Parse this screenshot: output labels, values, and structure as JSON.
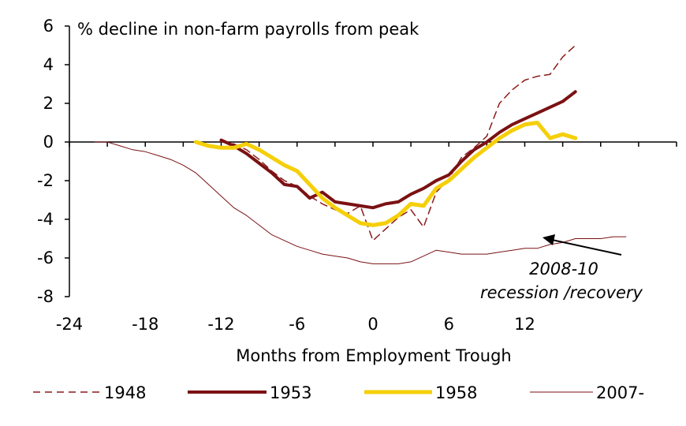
{
  "chart_data": {
    "type": "line",
    "title": "% decline in non-farm payrolls from peak",
    "xlabel": "Months from Employment Trough",
    "ylabel": "",
    "xlim": [
      -24,
      24
    ],
    "ylim": [
      -8,
      6
    ],
    "xticks": [
      -24,
      -18,
      -12,
      -6,
      0,
      6,
      12
    ],
    "yticks": [
      6,
      4,
      2,
      0,
      -2,
      -4,
      -6,
      -8
    ],
    "grid": false,
    "legend_position": "bottom",
    "annotation": {
      "line1": "2008-10",
      "line2": "recession /recovery",
      "points_to_series": "2007-"
    },
    "series": [
      {
        "name": "1948",
        "style": "dashed",
        "color": "#8B1A1A",
        "x": [
          -12,
          -11,
          -10,
          -9,
          -8,
          -7,
          -6,
          -5,
          -4,
          -3,
          -2,
          -1,
          0,
          1,
          2,
          3,
          4,
          5,
          6,
          7,
          8,
          9,
          10,
          11,
          12,
          13,
          14,
          15,
          16
        ],
        "y": [
          0.0,
          -0.1,
          -0.4,
          -0.9,
          -1.5,
          -2.0,
          -2.3,
          -2.8,
          -3.2,
          -3.5,
          -3.7,
          -3.3,
          -5.1,
          -4.5,
          -3.9,
          -3.5,
          -4.4,
          -2.6,
          -1.9,
          -0.8,
          -0.3,
          0.3,
          2.0,
          2.7,
          3.2,
          3.4,
          3.5,
          4.4,
          5.0
        ]
      },
      {
        "name": "1953",
        "style": "solid",
        "color": "#7B1113",
        "x": [
          -12,
          -11,
          -10,
          -9,
          -8,
          -7,
          -6,
          -5,
          -4,
          -3,
          -2,
          -1,
          0,
          1,
          2,
          3,
          4,
          5,
          6,
          7,
          8,
          9,
          10,
          11,
          12,
          13,
          14,
          15,
          16
        ],
        "y": [
          0.1,
          -0.2,
          -0.6,
          -1.1,
          -1.6,
          -2.2,
          -2.3,
          -2.9,
          -2.6,
          -3.1,
          -3.2,
          -3.3,
          -3.4,
          -3.2,
          -3.1,
          -2.7,
          -2.4,
          -2.0,
          -1.7,
          -1.0,
          -0.4,
          0.0,
          0.5,
          0.9,
          1.2,
          1.5,
          1.8,
          2.1,
          2.6
        ]
      },
      {
        "name": "1958",
        "style": "solid",
        "color": "#F5CF0A",
        "x": [
          -14,
          -13,
          -12,
          -11,
          -10,
          -9,
          -8,
          -7,
          -6,
          -5,
          -4,
          -3,
          -2,
          -1,
          0,
          1,
          2,
          3,
          4,
          5,
          6,
          7,
          8,
          9,
          10,
          11,
          12,
          13,
          14,
          15,
          16
        ],
        "y": [
          0.0,
          -0.2,
          -0.3,
          -0.3,
          -0.1,
          -0.4,
          -0.8,
          -1.2,
          -1.5,
          -2.2,
          -2.9,
          -3.4,
          -3.8,
          -4.2,
          -4.3,
          -4.2,
          -3.8,
          -3.2,
          -3.3,
          -2.4,
          -2.0,
          -1.4,
          -0.8,
          -0.3,
          0.2,
          0.6,
          0.9,
          1.0,
          0.2,
          0.4,
          0.2
        ]
      },
      {
        "name": "2007-",
        "style": "thin",
        "color": "#7B1113",
        "x": [
          -22,
          -21,
          -20,
          -19,
          -18,
          -17,
          -16,
          -15,
          -14,
          -13,
          -12,
          -11,
          -10,
          -9,
          -8,
          -7,
          -6,
          -5,
          -4,
          -3,
          -2,
          -1,
          0,
          1,
          2,
          3,
          4,
          5,
          6,
          7,
          8,
          9,
          10,
          11,
          12,
          13,
          14,
          15,
          16,
          17,
          18,
          19,
          20
        ],
        "y": [
          0.0,
          0.0,
          -0.2,
          -0.4,
          -0.5,
          -0.7,
          -0.9,
          -1.2,
          -1.6,
          -2.2,
          -2.8,
          -3.4,
          -3.8,
          -4.3,
          -4.8,
          -5.1,
          -5.4,
          -5.6,
          -5.8,
          -5.9,
          -6.0,
          -6.2,
          -6.3,
          -6.3,
          -6.3,
          -6.2,
          -5.9,
          -5.6,
          -5.7,
          -5.8,
          -5.8,
          -5.8,
          -5.7,
          -5.6,
          -5.5,
          -5.5,
          -5.3,
          -5.2,
          -5.0,
          -5.0,
          -5.0,
          -4.9,
          -4.9
        ]
      }
    ]
  }
}
